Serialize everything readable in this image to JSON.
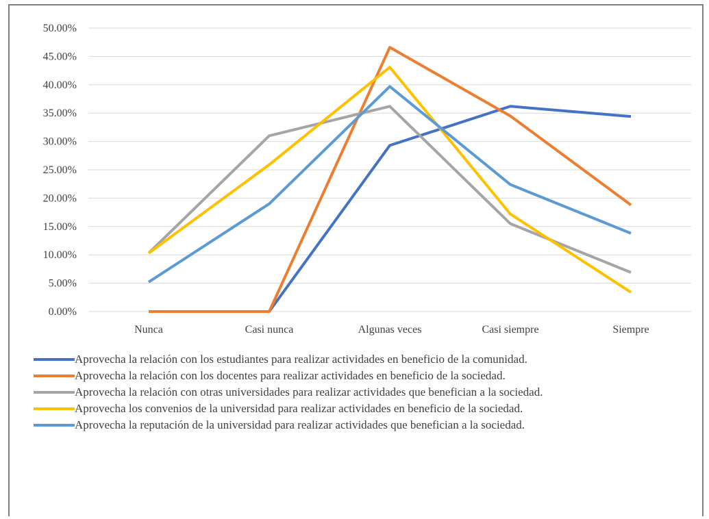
{
  "chart_data": {
    "type": "line",
    "categories": [
      "Nunca",
      "Casi nunca",
      "Algunas veces",
      "Casi siempre",
      "Siempre"
    ],
    "ylim": [
      0,
      50
    ],
    "yticks": [
      "0.00%",
      "5.00%",
      "10.00%",
      "15.00%",
      "20.00%",
      "25.00%",
      "30.00%",
      "35.00%",
      "40.00%",
      "45.00%",
      "50.00%"
    ],
    "ytick_values": [
      0,
      5,
      10,
      15,
      20,
      25,
      30,
      35,
      40,
      45,
      50
    ],
    "grid": true,
    "legend_position": "bottom",
    "series": [
      {
        "name": "Aprovecha la relación con los estudiantes para realizar actividades en beneficio de la comunidad.",
        "color": "#4472c4",
        "values": [
          0,
          0,
          29.3,
          36.2,
          34.4
        ]
      },
      {
        "name": "Aprovecha la relación con los docentes para realizar actividades en beneficio de la sociedad.",
        "color": "#ed7d31",
        "values": [
          0,
          0,
          46.6,
          34.5,
          18.8
        ]
      },
      {
        "name": "Aprovecha la relación con otras universidades para realizar actividades que benefician a la sociedad.",
        "color": "#a5a5a5",
        "values": [
          10.3,
          31.0,
          36.2,
          15.5,
          6.9
        ]
      },
      {
        "name": "Aprovecha los convenios de la universidad para realizar actividades en beneficio de la sociedad.",
        "color": "#ffc000",
        "values": [
          10.3,
          25.9,
          43.1,
          17.2,
          3.4
        ]
      },
      {
        "name": "Aprovecha la reputación de la universidad para realizar actividades que benefician a la sociedad.",
        "color": "#5b9bd5",
        "values": [
          5.2,
          19.0,
          39.7,
          22.4,
          13.8
        ]
      }
    ]
  }
}
